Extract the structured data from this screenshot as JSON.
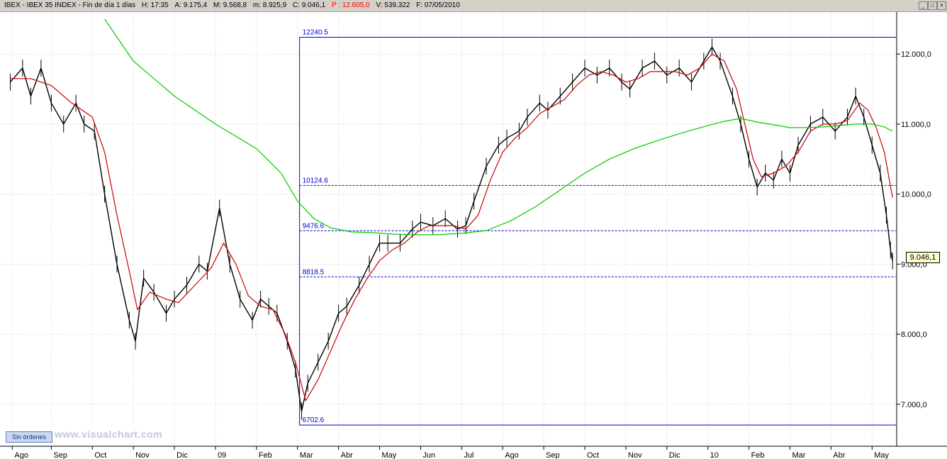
{
  "header": {
    "title": "IBEX - IBEX 35 INDEX - Fin de día 1 días",
    "time": "H: 17:35",
    "open": "A: 9.175,4",
    "high": "M: 9.568,8",
    "low": "m: 8.925,9",
    "close": "C: 9.046,1",
    "p": "P : 12.605,0",
    "volume": "V: 539.322",
    "date": "F: 07/05/2010"
  },
  "footer": {
    "orders_button": "Sin órdenes",
    "watermark": "www.visualchart.com"
  },
  "price_badge": "9.046,1",
  "colors": {
    "price_bars": "#000000",
    "short_ma": "#cc0000",
    "long_ma": "#00cc00",
    "levels": "#0000cc",
    "p_value": "#ff0000"
  },
  "chart_data": {
    "type": "line",
    "title": "",
    "xlabel": "",
    "ylabel": "",
    "ylim": [
      6400,
      12600
    ],
    "y_ticks": [
      {
        "value": 7000,
        "label": "7.000,0"
      },
      {
        "value": 8000,
        "label": "8.000,0"
      },
      {
        "value": 9000,
        "label": "9.000,0"
      },
      {
        "value": 10000,
        "label": "10.000,0"
      },
      {
        "value": 11000,
        "label": "11.000,0"
      },
      {
        "value": 12000,
        "label": "12.000,0"
      }
    ],
    "x_ticks": [
      {
        "label": "Ago",
        "t": 0.05
      },
      {
        "label": "Sep",
        "t": 1.0
      },
      {
        "label": "Oct",
        "t": 2.0
      },
      {
        "label": "Nov",
        "t": 3.0
      },
      {
        "label": "Dic",
        "t": 4.0
      },
      {
        "label": "09",
        "t": 5.0
      },
      {
        "label": "Feb",
        "t": 6.0
      },
      {
        "label": "Mar",
        "t": 7.0
      },
      {
        "label": "Abr",
        "t": 8.0
      },
      {
        "label": "May",
        "t": 9.0
      },
      {
        "label": "Jun",
        "t": 10.0
      },
      {
        "label": "Jul",
        "t": 11.0
      },
      {
        "label": "Ago",
        "t": 12.0
      },
      {
        "label": "Sep",
        "t": 13.0
      },
      {
        "label": "Oct",
        "t": 14.0
      },
      {
        "label": "Nov",
        "t": 15.0
      },
      {
        "label": "Dic",
        "t": 16.0
      },
      {
        "label": "10",
        "t": 17.0
      },
      {
        "label": "Feb",
        "t": 18.0
      },
      {
        "label": "Mar",
        "t": 19.0
      },
      {
        "label": "Abr",
        "t": 20.0
      },
      {
        "label": "May",
        "t": 21.0
      }
    ],
    "levels": [
      {
        "value": 12240.5,
        "label": "12240.5",
        "style": "solid"
      },
      {
        "value": 10124.6,
        "label": "10124.6",
        "style": "dashed"
      },
      {
        "value": 9476.6,
        "label": "9476.6",
        "style": "dashed"
      },
      {
        "value": 8818.5,
        "label": "8818.5",
        "style": "dashed"
      },
      {
        "value": 6702.6,
        "label": "6702.6",
        "style": "solid"
      }
    ],
    "level_box_start_t": 7.05,
    "series": [
      {
        "role": "price",
        "points": [
          [
            0,
            11600
          ],
          [
            0.3,
            11800
          ],
          [
            0.5,
            11400
          ],
          [
            0.75,
            11800
          ],
          [
            1.0,
            11300
          ],
          [
            1.3,
            11000
          ],
          [
            1.6,
            11300
          ],
          [
            1.8,
            11000
          ],
          [
            2.05,
            10900
          ],
          [
            2.3,
            10000
          ],
          [
            2.6,
            9000
          ],
          [
            2.9,
            8200
          ],
          [
            3.05,
            7900
          ],
          [
            3.25,
            8800
          ],
          [
            3.5,
            8600
          ],
          [
            3.8,
            8300
          ],
          [
            4.0,
            8500
          ],
          [
            4.3,
            8700
          ],
          [
            4.6,
            9000
          ],
          [
            4.8,
            8900
          ],
          [
            5.1,
            9800
          ],
          [
            5.35,
            9000
          ],
          [
            5.6,
            8500
          ],
          [
            5.9,
            8200
          ],
          [
            6.1,
            8500
          ],
          [
            6.3,
            8400
          ],
          [
            6.5,
            8300
          ],
          [
            6.75,
            7900
          ],
          [
            6.95,
            7500
          ],
          [
            7.1,
            6900
          ],
          [
            7.25,
            7300
          ],
          [
            7.5,
            7600
          ],
          [
            7.75,
            7900
          ],
          [
            8.0,
            8300
          ],
          [
            8.2,
            8400
          ],
          [
            8.5,
            8700
          ],
          [
            8.75,
            9000
          ],
          [
            9.0,
            9300
          ],
          [
            9.2,
            9300
          ],
          [
            9.5,
            9300
          ],
          [
            9.8,
            9500
          ],
          [
            10.0,
            9600
          ],
          [
            10.3,
            9550
          ],
          [
            10.6,
            9650
          ],
          [
            10.9,
            9500
          ],
          [
            11.1,
            9550
          ],
          [
            11.3,
            9900
          ],
          [
            11.6,
            10400
          ],
          [
            11.9,
            10700
          ],
          [
            12.1,
            10800
          ],
          [
            12.4,
            10900
          ],
          [
            12.6,
            11100
          ],
          [
            12.9,
            11300
          ],
          [
            13.1,
            11200
          ],
          [
            13.4,
            11400
          ],
          [
            13.7,
            11600
          ],
          [
            14.0,
            11800
          ],
          [
            14.3,
            11700
          ],
          [
            14.6,
            11800
          ],
          [
            14.9,
            11600
          ],
          [
            15.1,
            11500
          ],
          [
            15.4,
            11800
          ],
          [
            15.7,
            11900
          ],
          [
            16.0,
            11700
          ],
          [
            16.3,
            11800
          ],
          [
            16.6,
            11600
          ],
          [
            16.9,
            11900
          ],
          [
            17.1,
            12100
          ],
          [
            17.3,
            11900
          ],
          [
            17.6,
            11400
          ],
          [
            17.8,
            11000
          ],
          [
            18.0,
            10500
          ],
          [
            18.2,
            10100
          ],
          [
            18.4,
            10300
          ],
          [
            18.6,
            10200
          ],
          [
            18.8,
            10500
          ],
          [
            19.0,
            10300
          ],
          [
            19.2,
            10700
          ],
          [
            19.5,
            11000
          ],
          [
            19.8,
            11100
          ],
          [
            20.1,
            10900
          ],
          [
            20.4,
            11100
          ],
          [
            20.6,
            11400
          ],
          [
            20.8,
            11100
          ],
          [
            21.0,
            10700
          ],
          [
            21.2,
            10300
          ],
          [
            21.35,
            9700
          ],
          [
            21.45,
            9200
          ],
          [
            21.5,
            9046
          ]
        ]
      },
      {
        "role": "short_ma",
        "points": [
          [
            0,
            11650
          ],
          [
            0.5,
            11650
          ],
          [
            1.0,
            11550
          ],
          [
            1.5,
            11300
          ],
          [
            2.0,
            11100
          ],
          [
            2.3,
            10600
          ],
          [
            2.6,
            9700
          ],
          [
            2.9,
            8900
          ],
          [
            3.1,
            8350
          ],
          [
            3.4,
            8600
          ],
          [
            3.8,
            8500
          ],
          [
            4.1,
            8450
          ],
          [
            4.5,
            8700
          ],
          [
            4.9,
            8950
          ],
          [
            5.2,
            9300
          ],
          [
            5.5,
            9000
          ],
          [
            5.8,
            8550
          ],
          [
            6.1,
            8400
          ],
          [
            6.4,
            8350
          ],
          [
            6.7,
            8000
          ],
          [
            6.95,
            7600
          ],
          [
            7.2,
            7050
          ],
          [
            7.5,
            7350
          ],
          [
            7.8,
            7750
          ],
          [
            8.1,
            8150
          ],
          [
            8.4,
            8500
          ],
          [
            8.7,
            8800
          ],
          [
            9.0,
            9050
          ],
          [
            9.3,
            9200
          ],
          [
            9.6,
            9300
          ],
          [
            9.9,
            9450
          ],
          [
            10.2,
            9550
          ],
          [
            10.5,
            9550
          ],
          [
            10.8,
            9550
          ],
          [
            11.1,
            9500
          ],
          [
            11.4,
            9700
          ],
          [
            11.7,
            10200
          ],
          [
            12.0,
            10600
          ],
          [
            12.3,
            10800
          ],
          [
            12.6,
            10950
          ],
          [
            12.9,
            11150
          ],
          [
            13.2,
            11250
          ],
          [
            13.5,
            11350
          ],
          [
            13.8,
            11550
          ],
          [
            14.1,
            11700
          ],
          [
            14.4,
            11750
          ],
          [
            14.7,
            11700
          ],
          [
            15.0,
            11600
          ],
          [
            15.3,
            11650
          ],
          [
            15.6,
            11750
          ],
          [
            15.9,
            11750
          ],
          [
            16.2,
            11750
          ],
          [
            16.5,
            11700
          ],
          [
            16.8,
            11800
          ],
          [
            17.1,
            12000
          ],
          [
            17.4,
            11900
          ],
          [
            17.7,
            11500
          ],
          [
            17.9,
            11000
          ],
          [
            18.1,
            10500
          ],
          [
            18.3,
            10250
          ],
          [
            18.6,
            10300
          ],
          [
            18.9,
            10400
          ],
          [
            19.2,
            10600
          ],
          [
            19.5,
            10900
          ],
          [
            19.8,
            11000
          ],
          [
            20.1,
            11000
          ],
          [
            20.4,
            11050
          ],
          [
            20.7,
            11300
          ],
          [
            20.9,
            11200
          ],
          [
            21.1,
            10950
          ],
          [
            21.3,
            10600
          ],
          [
            21.5,
            9950
          ]
        ]
      },
      {
        "role": "long_ma",
        "points": [
          [
            2.3,
            12500
          ],
          [
            3.0,
            11900
          ],
          [
            4.0,
            11400
          ],
          [
            5.0,
            11000
          ],
          [
            6.0,
            10650
          ],
          [
            6.6,
            10300
          ],
          [
            7.0,
            9900
          ],
          [
            7.4,
            9650
          ],
          [
            7.8,
            9520
          ],
          [
            8.3,
            9460
          ],
          [
            8.8,
            9450
          ],
          [
            9.3,
            9430
          ],
          [
            9.8,
            9420
          ],
          [
            10.4,
            9420
          ],
          [
            11.0,
            9440
          ],
          [
            11.6,
            9480
          ],
          [
            12.2,
            9620
          ],
          [
            12.8,
            9820
          ],
          [
            13.4,
            10060
          ],
          [
            14.0,
            10300
          ],
          [
            14.6,
            10500
          ],
          [
            15.2,
            10650
          ],
          [
            15.8,
            10770
          ],
          [
            16.4,
            10880
          ],
          [
            17.0,
            10980
          ],
          [
            17.4,
            11040
          ],
          [
            17.8,
            11080
          ],
          [
            18.2,
            11030
          ],
          [
            18.6,
            10990
          ],
          [
            19.0,
            10950
          ],
          [
            19.4,
            10950
          ],
          [
            19.8,
            10960
          ],
          [
            20.2,
            10980
          ],
          [
            20.6,
            11000
          ],
          [
            21.0,
            11000
          ],
          [
            21.3,
            10960
          ],
          [
            21.5,
            10900
          ]
        ]
      }
    ]
  }
}
